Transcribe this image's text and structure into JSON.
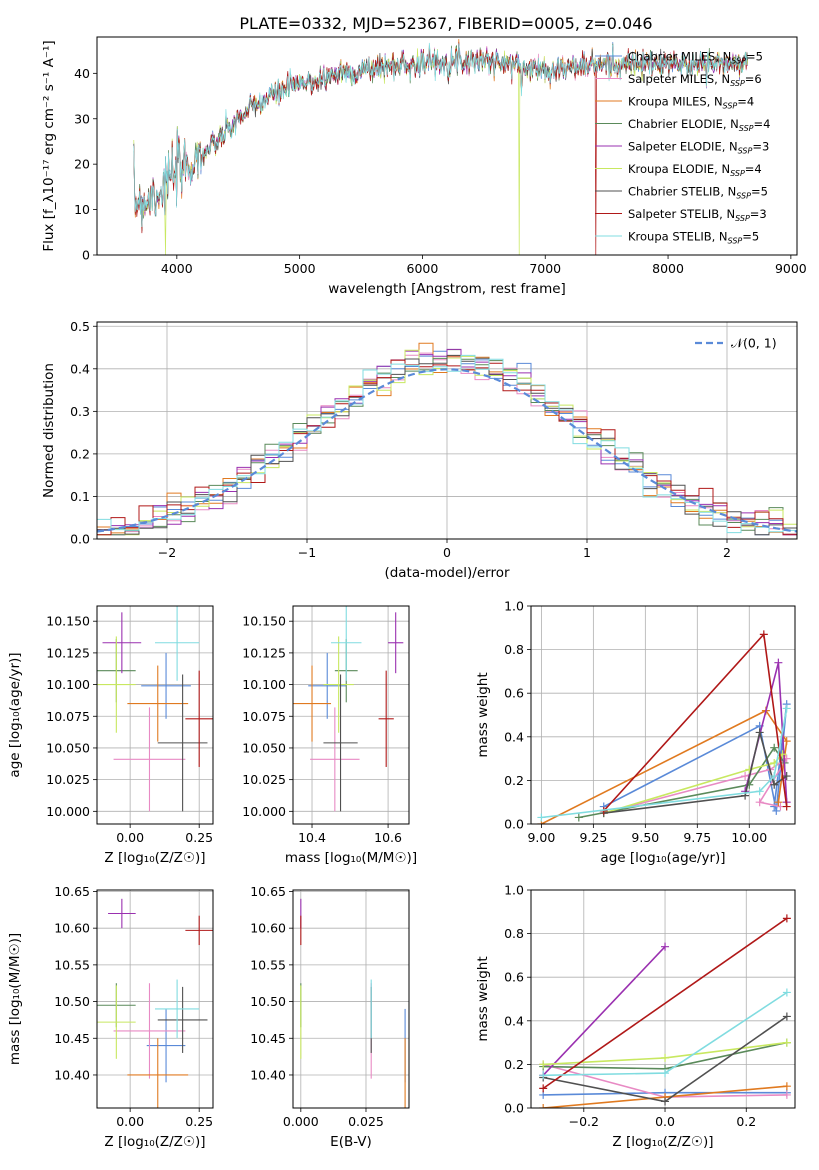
{
  "figure": {
    "title": "PLATE=0332, MJD=52367, FIBERID=0005, z=0.046"
  },
  "colors": {
    "Chabrier MILES": "#5a8ad8",
    "Salpeter MILES": "#e88ac4",
    "Kroupa MILES": "#e07a20",
    "Chabrier ELODIE": "#5a8a5a",
    "Salpeter ELODIE": "#9a30b0",
    "Kroupa ELODIE": "#c8e860",
    "Chabrier STELIB": "#505050",
    "Salpeter STELIB": "#b01818",
    "Kroupa STELIB": "#80dce0",
    "normal": "#5a8ad8",
    "grid": "#b0b0b0"
  },
  "chart_data": [
    {
      "id": "spectrum",
      "type": "line",
      "title": "PLATE=0332, MJD=52367, FIBERID=0005, z=0.046",
      "xlabel": "wavelength [Angstrom, rest frame]",
      "ylabel": "Flux [f_λ10^-17 erg cm^-2 s^-1 A^-1]",
      "xlim": [
        3350,
        9050
      ],
      "ylim": [
        0,
        48
      ],
      "xticks": [
        4000,
        5000,
        6000,
        7000,
        8000,
        9000
      ],
      "yticks": [
        0,
        10,
        20,
        30,
        40
      ],
      "grid": false,
      "legend_position": "right",
      "data_range": [
        3650,
        8650
      ],
      "continuum": {
        "x": [
          3650,
          3750,
          3850,
          3950,
          4050,
          4150,
          4300,
          4500,
          4700,
          4900,
          5100,
          5300,
          5500,
          5700,
          5900,
          6100,
          6300,
          6500,
          6700,
          6900,
          7100,
          7300,
          7500,
          7700,
          7900,
          8100,
          8300,
          8500,
          8650
        ],
        "y": [
          12,
          12,
          14,
          17,
          19,
          21,
          24,
          30,
          34,
          37,
          38,
          40,
          40.5,
          41.5,
          42,
          42.5,
          43,
          43,
          42,
          41,
          41,
          41.5,
          42,
          42,
          42,
          42,
          42,
          42,
          42
        ]
      },
      "series": [
        {
          "name": "Chabrier MILES",
          "n_ssp": "5"
        },
        {
          "name": "Salpeter MILES",
          "n_ssp": "6"
        },
        {
          "name": "Kroupa MILES",
          "n_ssp": "4"
        },
        {
          "name": "Chabrier ELODIE",
          "n_ssp": "4"
        },
        {
          "name": "Salpeter ELODIE",
          "n_ssp": "3"
        },
        {
          "name": "Kroupa ELODIE",
          "n_ssp": "4"
        },
        {
          "name": "Chabrier STELIB",
          "n_ssp": "5"
        },
        {
          "name": "Salpeter STELIB",
          "n_ssp": "3"
        },
        {
          "name": "Kroupa STELIB",
          "n_ssp": "5"
        }
      ],
      "drops": [
        {
          "series": "Kroupa ELODIE",
          "x": 6790
        },
        {
          "series": "Salpeter STELIB",
          "x": 7410
        },
        {
          "series": "Kroupa ELODIE",
          "x": 3910
        }
      ]
    },
    {
      "id": "residuals",
      "type": "histogram",
      "xlabel": "(data-model)/error",
      "ylabel": "Normed distribution",
      "xlim": [
        -2.5,
        2.5
      ],
      "ylim": [
        0,
        0.51
      ],
      "xticks": [
        -2,
        -1,
        0,
        1,
        2
      ],
      "yticks": [
        0.0,
        0.1,
        0.2,
        0.3,
        0.4,
        0.5
      ],
      "grid": true,
      "legend_position": "upper right",
      "bin_width": 0.1,
      "normal_curve": {
        "label": "𝒩(0, 1)",
        "mean": 0,
        "sigma": 1
      }
    },
    {
      "id": "age_vs_Z",
      "type": "errorbar",
      "xlabel": "Z [log10(Z/Z☉)]",
      "ylabel": "age  [log10(age/yr)]",
      "xlim": [
        -0.12,
        0.3
      ],
      "ylim": [
        9.99,
        10.162
      ],
      "xticks": [
        0.0,
        0.25
      ],
      "yticks": [
        10.0,
        10.025,
        10.05,
        10.075,
        10.1,
        10.125,
        10.15
      ],
      "grid": true,
      "points": [
        {
          "series": "Chabrier MILES",
          "x": 0.13,
          "xerr": 0.09,
          "y": 10.099,
          "yerr": 0.026
        },
        {
          "series": "Salpeter MILES",
          "x": 0.07,
          "xerr": 0.13,
          "y": 10.041,
          "yerr": 0.041
        },
        {
          "series": "Kroupa MILES",
          "x": 0.1,
          "xerr": 0.11,
          "y": 10.085,
          "yerr": 0.03
        },
        {
          "series": "Chabrier ELODIE",
          "x": -0.05,
          "xerr": 0.07,
          "y": 10.111,
          "yerr": 0.025
        },
        {
          "series": "Salpeter ELODIE",
          "x": -0.03,
          "xerr": 0.07,
          "y": 10.133,
          "yerr": 0.024
        },
        {
          "series": "Kroupa ELODIE",
          "x": -0.05,
          "xerr": 0.07,
          "y": 10.1,
          "yerr": 0.038
        },
        {
          "series": "Chabrier STELIB",
          "x": 0.19,
          "xerr": 0.09,
          "y": 10.054,
          "yerr": 0.054
        },
        {
          "series": "Salpeter STELIB",
          "x": 0.25,
          "xerr": 0.05,
          "y": 10.073,
          "yerr": 0.038
        },
        {
          "series": "Kroupa STELIB",
          "x": 0.17,
          "xerr": 0.08,
          "y": 10.133,
          "yerr": 0.03
        }
      ]
    },
    {
      "id": "age_vs_mass",
      "type": "errorbar",
      "xlabel": "mass [log10(M/M☉)]",
      "ylabel": "",
      "xlim": [
        10.35,
        10.655
      ],
      "ylim": [
        9.99,
        10.162
      ],
      "xticks": [
        10.4,
        10.6
      ],
      "yticks": [
        10.0,
        10.025,
        10.05,
        10.075,
        10.1,
        10.125,
        10.15
      ],
      "grid": true,
      "points": [
        {
          "series": "Chabrier MILES",
          "x": 10.44,
          "xerr": 0.05,
          "y": 10.099,
          "yerr": 0.026
        },
        {
          "series": "Salpeter MILES",
          "x": 10.46,
          "xerr": 0.065,
          "y": 10.041,
          "yerr": 0.041
        },
        {
          "series": "Kroupa MILES",
          "x": 10.4,
          "xerr": 0.05,
          "y": 10.085,
          "yerr": 0.03
        },
        {
          "series": "Chabrier ELODIE",
          "x": 10.49,
          "xerr": 0.03,
          "y": 10.111,
          "yerr": 0.025
        },
        {
          "series": "Salpeter ELODIE",
          "x": 10.62,
          "xerr": 0.02,
          "y": 10.133,
          "yerr": 0.024
        },
        {
          "series": "Kroupa ELODIE",
          "x": 10.47,
          "xerr": 0.04,
          "y": 10.1,
          "yerr": 0.038
        },
        {
          "series": "Chabrier STELIB",
          "x": 10.475,
          "xerr": 0.045,
          "y": 10.054,
          "yerr": 0.054
        },
        {
          "series": "Salpeter STELIB",
          "x": 10.595,
          "xerr": 0.02,
          "y": 10.073,
          "yerr": 0.038
        },
        {
          "series": "Kroupa STELIB",
          "x": 10.49,
          "xerr": 0.04,
          "y": 10.133,
          "yerr": 0.03
        }
      ]
    },
    {
      "id": "weights_vs_age",
      "type": "line",
      "xlabel": "age  [log10(age/yr)]",
      "ylabel": "mass weight",
      "xlim": [
        8.95,
        10.22
      ],
      "ylim": [
        0,
        1.0
      ],
      "xticks": [
        9.0,
        9.25,
        9.5,
        9.75,
        10.0
      ],
      "yticks": [
        0.0,
        0.2,
        0.4,
        0.6,
        0.8,
        1.0
      ],
      "grid": true,
      "series": [
        {
          "name": "Chabrier MILES",
          "x": [
            9.3,
            10.05,
            10.13,
            10.18,
            10.12
          ],
          "y": [
            0.08,
            0.45,
            0.06,
            0.55,
            0.08
          ]
        },
        {
          "name": "Salpeter MILES",
          "x": [
            9.3,
            9.98,
            10.1,
            10.18,
            10.05,
            10.15
          ],
          "y": [
            0.05,
            0.22,
            0.25,
            0.3,
            0.1,
            0.08
          ]
        },
        {
          "name": "Kroupa MILES",
          "x": [
            9.0,
            10.08,
            10.18,
            10.14
          ],
          "y": [
            0.0,
            0.52,
            0.38,
            0.1
          ]
        },
        {
          "name": "Chabrier ELODIE",
          "x": [
            9.18,
            10.0,
            10.12,
            10.17
          ],
          "y": [
            0.03,
            0.18,
            0.35,
            0.28
          ]
        },
        {
          "name": "Salpeter ELODIE",
          "x": [
            9.98,
            10.14,
            10.18
          ],
          "y": [
            0.15,
            0.74,
            0.1
          ]
        },
        {
          "name": "Kroupa ELODIE",
          "x": [
            9.3,
            10.0,
            10.12,
            10.16
          ],
          "y": [
            0.05,
            0.25,
            0.28,
            0.32
          ]
        },
        {
          "name": "Chabrier STELIB",
          "x": [
            9.3,
            9.98,
            10.05,
            10.12,
            10.18
          ],
          "y": [
            0.05,
            0.13,
            0.42,
            0.18,
            0.22
          ]
        },
        {
          "name": "Salpeter STELIB",
          "x": [
            9.3,
            10.07,
            10.18
          ],
          "y": [
            0.06,
            0.87,
            0.08
          ]
        },
        {
          "name": "Kroupa STELIB",
          "x": [
            9.0,
            10.05,
            10.12,
            10.18
          ],
          "y": [
            0.03,
            0.15,
            0.22,
            0.53
          ]
        }
      ]
    },
    {
      "id": "mass_vs_Z",
      "type": "errorbar",
      "xlabel": "Z [log10(Z/Z☉)]",
      "ylabel": "mass [log10(M/M☉)]",
      "xlim": [
        -0.12,
        0.3
      ],
      "ylim": [
        10.355,
        10.652
      ],
      "xticks": [
        0.0,
        0.25
      ],
      "yticks": [
        10.4,
        10.45,
        10.5,
        10.55,
        10.6,
        10.65
      ],
      "grid": true,
      "points": [
        {
          "series": "Chabrier MILES",
          "x": 0.13,
          "xerr": 0.07,
          "y": 10.44,
          "yerr": 0.05
        },
        {
          "series": "Salpeter MILES",
          "x": 0.07,
          "xerr": 0.13,
          "y": 10.46,
          "yerr": 0.065
        },
        {
          "series": "Kroupa MILES",
          "x": 0.1,
          "xerr": 0.11,
          "y": 10.4,
          "yerr": 0.05
        },
        {
          "series": "Chabrier ELODIE",
          "x": -0.05,
          "xerr": 0.07,
          "y": 10.495,
          "yerr": 0.03
        },
        {
          "series": "Salpeter ELODIE",
          "x": -0.03,
          "xerr": 0.05,
          "y": 10.62,
          "yerr": 0.02
        },
        {
          "series": "Kroupa ELODIE",
          "x": -0.05,
          "xerr": 0.07,
          "y": 10.472,
          "yerr": 0.05
        },
        {
          "series": "Chabrier STELIB",
          "x": 0.19,
          "xerr": 0.09,
          "y": 10.475,
          "yerr": 0.045
        },
        {
          "series": "Salpeter STELIB",
          "x": 0.25,
          "xerr": 0.05,
          "y": 10.597,
          "yerr": 0.02
        },
        {
          "series": "Kroupa STELIB",
          "x": 0.17,
          "xerr": 0.08,
          "y": 10.49,
          "yerr": 0.04
        }
      ]
    },
    {
      "id": "mass_vs_ebv",
      "type": "errorbar",
      "xlabel": "E(B-V)",
      "ylabel": "",
      "xlim": [
        -0.003,
        0.0415
      ],
      "ylim": [
        10.355,
        10.652
      ],
      "xticks": [
        0.0,
        0.025
      ],
      "yticks": [
        10.4,
        10.45,
        10.5,
        10.55,
        10.6,
        10.65
      ],
      "grid": true,
      "points": [
        {
          "series": "Chabrier MILES",
          "x": 0.04,
          "xerr": 0,
          "y": 10.44,
          "yerr": 0.05
        },
        {
          "series": "Salpeter MILES",
          "x": 0.027,
          "xerr": 0,
          "y": 10.46,
          "yerr": 0.065
        },
        {
          "series": "Kroupa MILES",
          "x": 0.04,
          "xerr": 0,
          "y": 10.4,
          "yerr": 0.05
        },
        {
          "series": "Chabrier ELODIE",
          "x": 0.0,
          "xerr": 0,
          "y": 10.495,
          "yerr": 0.03
        },
        {
          "series": "Salpeter ELODIE",
          "x": 0.0,
          "xerr": 0,
          "y": 10.62,
          "yerr": 0.02
        },
        {
          "series": "Kroupa ELODIE",
          "x": 0.0,
          "xerr": 0,
          "y": 10.472,
          "yerr": 0.05
        },
        {
          "series": "Chabrier STELIB",
          "x": 0.027,
          "xerr": 0,
          "y": 10.475,
          "yerr": 0.045
        },
        {
          "series": "Salpeter STELIB",
          "x": 0.0,
          "xerr": 0,
          "y": 10.597,
          "yerr": 0.02
        },
        {
          "series": "Kroupa STELIB",
          "x": 0.027,
          "xerr": 0,
          "y": 10.49,
          "yerr": 0.04
        }
      ]
    },
    {
      "id": "weights_vs_Z",
      "type": "line",
      "xlabel": "Z [log10(Z/Z☉)]",
      "ylabel": "mass weight",
      "xlim": [
        -0.33,
        0.32
      ],
      "ylim": [
        0,
        1.0
      ],
      "xticks": [
        -0.2,
        0.0,
        0.2
      ],
      "yticks": [
        0.0,
        0.2,
        0.4,
        0.6,
        0.8,
        1.0
      ],
      "grid": true,
      "series": [
        {
          "name": "Chabrier MILES",
          "x": [
            -0.3,
            0.0,
            0.3
          ],
          "y": [
            0.06,
            0.07,
            0.07
          ]
        },
        {
          "name": "Salpeter MILES",
          "x": [
            -0.3,
            0.0,
            0.3
          ],
          "y": [
            0.2,
            0.05,
            0.06
          ]
        },
        {
          "name": "Kroupa MILES",
          "x": [
            -0.3,
            0.0,
            0.3
          ],
          "y": [
            0.0,
            0.05,
            0.1
          ]
        },
        {
          "name": "Chabrier ELODIE",
          "x": [
            -0.3,
            0.0,
            0.3
          ],
          "y": [
            0.19,
            0.18,
            0.3
          ]
        },
        {
          "name": "Salpeter ELODIE",
          "x": [
            -0.3,
            0.0
          ],
          "y": [
            0.15,
            0.74
          ]
        },
        {
          "name": "Kroupa ELODIE",
          "x": [
            -0.3,
            0.0,
            0.3
          ],
          "y": [
            0.2,
            0.23,
            0.3
          ]
        },
        {
          "name": "Chabrier STELIB",
          "x": [
            -0.3,
            0.0,
            0.3
          ],
          "y": [
            0.14,
            0.03,
            0.42
          ]
        },
        {
          "name": "Salpeter STELIB",
          "x": [
            -0.3,
            0.3
          ],
          "y": [
            0.09,
            0.87
          ]
        },
        {
          "name": "Kroupa STELIB",
          "x": [
            -0.3,
            0.0,
            0.3
          ],
          "y": [
            0.15,
            0.16,
            0.53
          ]
        }
      ]
    }
  ]
}
